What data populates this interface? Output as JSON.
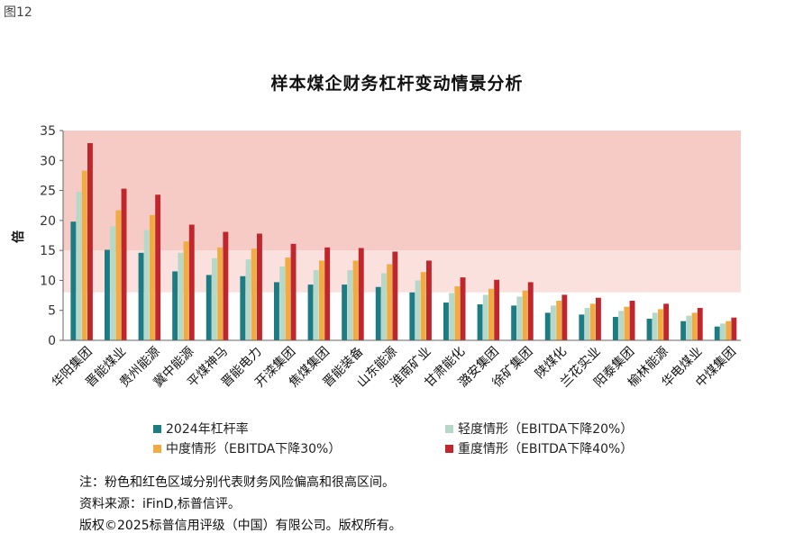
{
  "figure_label": "图12",
  "notes": {
    "note": "注：粉色和红色区域分别代表财务风险偏高和很高区间。",
    "source": "资料来源：iFinD,标普信评。",
    "copyright": "版权©2025标普信用评级（中国）有限公司。版权所有。"
  },
  "colors": {
    "band_high": "#fbe1de",
    "band_very_high": "#f7cbc5",
    "series": [
      "#1c7b83",
      "#b5d8c9",
      "#f0ac43",
      "#c0272d"
    ]
  },
  "chart_data": {
    "type": "bar",
    "title": "样本煤企财务杠杆变动情景分析",
    "ylabel": "倍",
    "xlabel": "",
    "ylim": [
      0,
      35
    ],
    "yticks": [
      0,
      5,
      10,
      15,
      20,
      25,
      30,
      35
    ],
    "grid": false,
    "legend_position": "bottom",
    "risk_bands": [
      {
        "from": 8,
        "to": 15,
        "level": "偏高"
      },
      {
        "from": 15,
        "to": 35,
        "level": "很高"
      }
    ],
    "categories": [
      "华阳集团",
      "晋能煤业",
      "贵州能源",
      "冀中能源",
      "平煤神马",
      "晋能电力",
      "开滦集团",
      "焦煤集团",
      "晋能装备",
      "山东能源",
      "淮南矿业",
      "甘肃能化",
      "潞安集团",
      "徐矿集团",
      "陕煤化",
      "兰花实业",
      "阳泰集团",
      "榆林能源",
      "华电煤业",
      "中煤集团"
    ],
    "series": [
      {
        "name": "2024年杠杆率",
        "values": [
          19.8,
          15.1,
          14.6,
          11.5,
          10.9,
          10.7,
          9.7,
          9.3,
          9.3,
          8.9,
          8.0,
          6.3,
          6.0,
          5.8,
          4.6,
          4.3,
          3.9,
          3.6,
          3.2,
          2.3
        ]
      },
      {
        "name": "轻度情形（EBITDA下降20%）",
        "values": [
          24.8,
          19.0,
          18.4,
          14.6,
          13.7,
          13.5,
          12.3,
          11.7,
          11.7,
          11.2,
          10.0,
          7.9,
          7.6,
          7.3,
          5.8,
          5.4,
          4.9,
          4.6,
          4.1,
          2.8
        ]
      },
      {
        "name": "中度情形（EBITDA下降30%）",
        "values": [
          28.3,
          21.7,
          20.9,
          16.5,
          15.5,
          15.3,
          13.8,
          13.3,
          13.3,
          12.7,
          11.4,
          9.0,
          8.6,
          8.3,
          6.6,
          6.1,
          5.6,
          5.2,
          4.6,
          3.2
        ]
      },
      {
        "name": "重度情形（EBITDA下降40%）",
        "values": [
          32.9,
          25.3,
          24.3,
          19.3,
          18.1,
          17.8,
          16.1,
          15.5,
          15.4,
          14.8,
          13.3,
          10.5,
          10.1,
          9.7,
          7.6,
          7.1,
          6.6,
          6.1,
          5.4,
          3.8
        ]
      }
    ]
  }
}
